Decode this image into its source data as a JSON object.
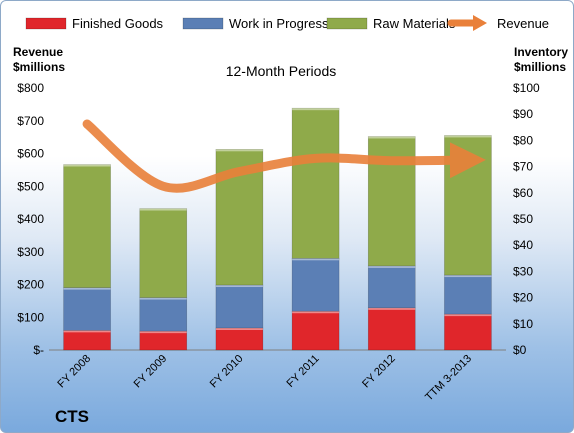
{
  "chart_data": {
    "type": "bar",
    "subtype": "stacked-bar-with-line",
    "title": "12-Month Periods",
    "company": "CTS",
    "categories": [
      "FY 2008",
      "FY 2009",
      "FY 2010",
      "FY 2011",
      "FY 2012",
      "TTM 3-2013"
    ],
    "series": [
      {
        "name": "Finished Goods",
        "axis": "right",
        "color": "#e0262b",
        "values": [
          7.5,
          7.2,
          8.4,
          14.8,
          16.1,
          13.7
        ]
      },
      {
        "name": "Work in Progress",
        "axis": "right",
        "color": "#5b7fb5",
        "values": [
          16.3,
          12.8,
          16.4,
          20.2,
          16.0,
          14.9
        ]
      },
      {
        "name": "Raw Materials",
        "axis": "right",
        "color": "#8faa4a",
        "values": [
          47.0,
          34.0,
          51.8,
          57.3,
          49.4,
          53.3
        ]
      },
      {
        "name": "Revenue",
        "axis": "left",
        "type": "line",
        "color": "#e9803a",
        "values": [
          690,
          500,
          545,
          585,
          578,
          580
        ]
      }
    ],
    "ylabel_left": [
      "Revenue",
      "$millions"
    ],
    "ylabel_right": [
      "Inventory",
      "$millions"
    ],
    "ylim_left": [
      0,
      800
    ],
    "ylim_right": [
      0,
      100
    ],
    "yticks_left": [
      "$-",
      "$100",
      "$200",
      "$300",
      "$400",
      "$500",
      "$600",
      "$700",
      "$800"
    ],
    "yticks_right": [
      "$0",
      "$10",
      "$20",
      "$30",
      "$40",
      "$50",
      "$60",
      "$70",
      "$80",
      "$90",
      "$100"
    ],
    "legend_position": "top",
    "grid": false
  }
}
